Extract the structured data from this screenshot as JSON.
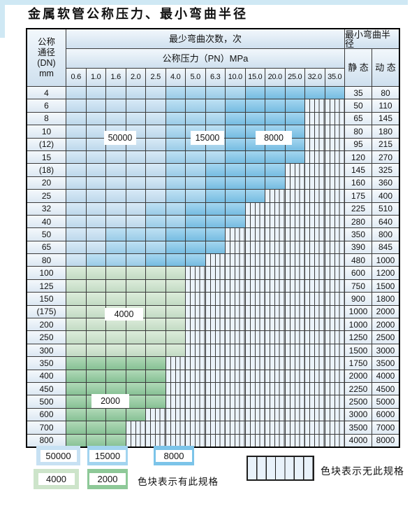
{
  "title": "金属软管公称压力、最小弯曲半径",
  "colors": {
    "b50": "#c7e1f3",
    "b15": "#a2d4ef",
    "b8": "#7cc4e9",
    "g4": "#cde4ca",
    "g2": "#8ec998",
    "grid_line": "#3a3a3a",
    "hatch_bg": "#ebf3fa",
    "header_bg": "#e2eef8"
  },
  "table": {
    "dn_header": [
      "公称",
      "通径",
      "(DN)",
      "mm"
    ],
    "bend_cycles_header": "最少弯曲次数，次",
    "pressure_header": "公称压力（PN）MPa",
    "pressures": [
      "0.6",
      "1.0",
      "1.6",
      "2.0",
      "2.5",
      "4.0",
      "5.0",
      "6.3",
      "10.0",
      "15.0",
      "20.0",
      "25.0",
      "32.0",
      "35.0"
    ],
    "radius_header": "最小弯曲半径",
    "static_header": "静 态",
    "dynamic_header": "动 态",
    "rows": [
      {
        "dn": "4",
        "bands": [
          [
            "b50",
            5
          ],
          [
            "b15",
            4
          ],
          [
            "b8",
            5
          ]
        ],
        "static": "35",
        "dynamic": "80"
      },
      {
        "dn": "6",
        "bands": [
          [
            "b50",
            5
          ],
          [
            "b15",
            3
          ],
          [
            "b8",
            4
          ]
        ],
        "static": "50",
        "dynamic": "110"
      },
      {
        "dn": "8",
        "bands": [
          [
            "b50",
            5
          ],
          [
            "b15",
            3
          ],
          [
            "b8",
            4
          ]
        ],
        "static": "65",
        "dynamic": "145"
      },
      {
        "dn": "10",
        "bands": [
          [
            "b50",
            5
          ],
          [
            "b15",
            3
          ],
          [
            "b8",
            4
          ]
        ],
        "static": "80",
        "dynamic": "180"
      },
      {
        "dn": "(12)",
        "bands": [
          [
            "b50",
            5
          ],
          [
            "b15",
            3
          ],
          [
            "b8",
            4
          ]
        ],
        "static": "95",
        "dynamic": "215"
      },
      {
        "dn": "15",
        "bands": [
          [
            "b50",
            5
          ],
          [
            "b15",
            3
          ],
          [
            "b8",
            4
          ]
        ],
        "static": "120",
        "dynamic": "270"
      },
      {
        "dn": "(18)",
        "bands": [
          [
            "b50",
            5
          ],
          [
            "b15",
            2
          ],
          [
            "b8",
            4
          ]
        ],
        "static": "145",
        "dynamic": "325"
      },
      {
        "dn": "20",
        "bands": [
          [
            "b50",
            5
          ],
          [
            "b15",
            2
          ],
          [
            "b8",
            4
          ]
        ],
        "static": "160",
        "dynamic": "360"
      },
      {
        "dn": "25",
        "bands": [
          [
            "b50",
            5
          ],
          [
            "b15",
            2
          ],
          [
            "b8",
            3
          ]
        ],
        "static": "175",
        "dynamic": "400"
      },
      {
        "dn": "32",
        "bands": [
          [
            "b50",
            4
          ],
          [
            "b15",
            2
          ],
          [
            "b8",
            3
          ]
        ],
        "static": "225",
        "dynamic": "510"
      },
      {
        "dn": "40",
        "bands": [
          [
            "b50",
            4
          ],
          [
            "b15",
            2
          ],
          [
            "b8",
            3
          ]
        ],
        "static": "280",
        "dynamic": "640"
      },
      {
        "dn": "50",
        "bands": [
          [
            "b50",
            2
          ],
          [
            "b15",
            3
          ],
          [
            "b8",
            3
          ]
        ],
        "static": "350",
        "dynamic": "800"
      },
      {
        "dn": "65",
        "bands": [
          [
            "b50",
            2
          ],
          [
            "b15",
            3
          ],
          [
            "b8",
            3
          ]
        ],
        "static": "390",
        "dynamic": "845"
      },
      {
        "dn": "80",
        "bands": [
          [
            "b50",
            1
          ],
          [
            "b15",
            3
          ],
          [
            "b8",
            3
          ]
        ],
        "static": "480",
        "dynamic": "1000"
      },
      {
        "dn": "100",
        "bands": [
          [
            "g4",
            6
          ]
        ],
        "static": "600",
        "dynamic": "1200"
      },
      {
        "dn": "125",
        "bands": [
          [
            "g4",
            6
          ]
        ],
        "static": "750",
        "dynamic": "1500"
      },
      {
        "dn": "150",
        "bands": [
          [
            "g4",
            6
          ]
        ],
        "static": "900",
        "dynamic": "1800"
      },
      {
        "dn": "(175)",
        "bands": [
          [
            "g4",
            6
          ]
        ],
        "static": "1000",
        "dynamic": "2000"
      },
      {
        "dn": "200",
        "bands": [
          [
            "g4",
            6
          ]
        ],
        "static": "1000",
        "dynamic": "2000"
      },
      {
        "dn": "250",
        "bands": [
          [
            "g4",
            6
          ]
        ],
        "static": "1250",
        "dynamic": "2500"
      },
      {
        "dn": "300",
        "bands": [
          [
            "g4",
            6
          ]
        ],
        "static": "1500",
        "dynamic": "3000"
      },
      {
        "dn": "350",
        "bands": [
          [
            "g2",
            5
          ]
        ],
        "static": "1750",
        "dynamic": "3500"
      },
      {
        "dn": "400",
        "bands": [
          [
            "g2",
            5
          ]
        ],
        "static": "2000",
        "dynamic": "4000"
      },
      {
        "dn": "450",
        "bands": [
          [
            "g2",
            5
          ]
        ],
        "static": "2250",
        "dynamic": "4500"
      },
      {
        "dn": "500",
        "bands": [
          [
            "g2",
            5
          ]
        ],
        "static": "2500",
        "dynamic": "5000"
      },
      {
        "dn": "600",
        "bands": [
          [
            "g2",
            4
          ]
        ],
        "static": "3000",
        "dynamic": "6000"
      },
      {
        "dn": "700",
        "bands": [
          [
            "g2",
            3
          ]
        ],
        "static": "3500",
        "dynamic": "7000"
      },
      {
        "dn": "800",
        "bands": [
          [
            "g2",
            3
          ]
        ],
        "static": "4000",
        "dynamic": "8000"
      }
    ]
  },
  "overlay_labels": [
    {
      "id": "ovl-50000",
      "text": "50000"
    },
    {
      "id": "ovl-15000",
      "text": "15000"
    },
    {
      "id": "ovl-8000",
      "text": "8000"
    },
    {
      "id": "ovl-4000",
      "text": "4000"
    },
    {
      "id": "ovl-2000",
      "text": "2000"
    }
  ],
  "legend": {
    "items": [
      {
        "value": "50000",
        "color": "b50"
      },
      {
        "value": "15000",
        "color": "b15"
      },
      {
        "value": "8000",
        "color": "b8"
      },
      {
        "value": "4000",
        "color": "g4"
      },
      {
        "value": "2000",
        "color": "g2"
      }
    ],
    "available_note": "色块表示有此规格",
    "unavailable_note": "色块表示无此规格"
  }
}
